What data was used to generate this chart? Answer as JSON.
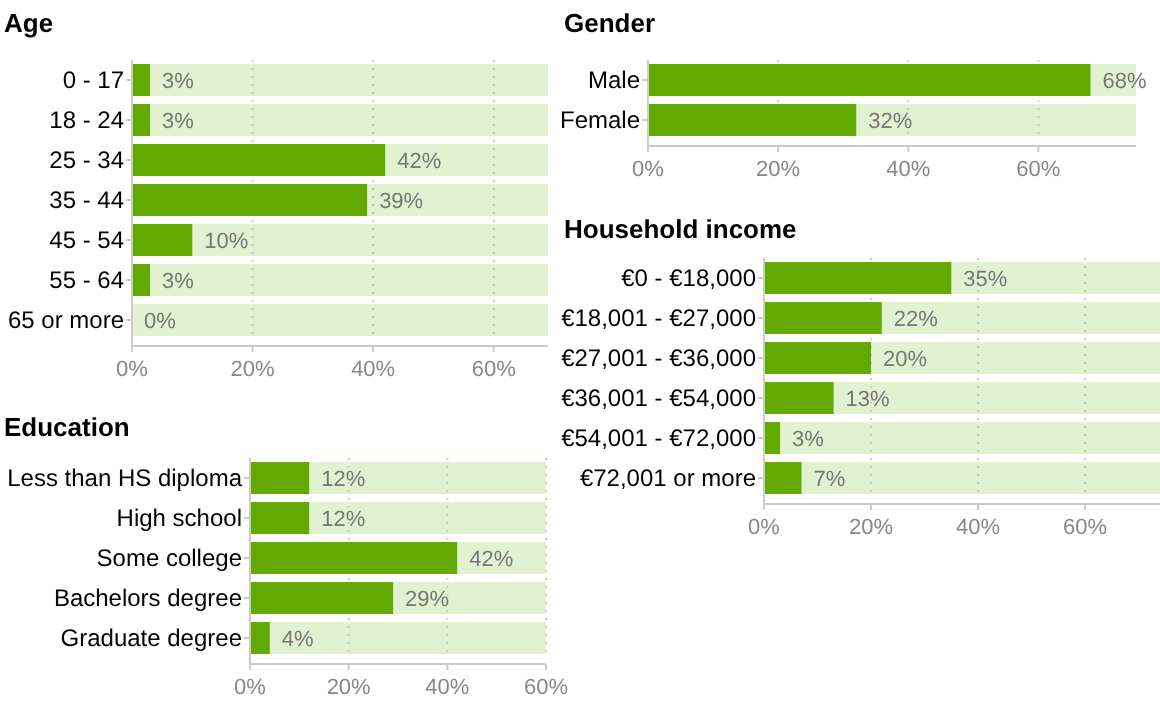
{
  "chart_data": [
    {
      "type": "bar",
      "orientation": "horizontal",
      "title": "Age",
      "categories": [
        "0 - 17",
        "18 - 24",
        "25 - 34",
        "35 - 44",
        "45 - 54",
        "55 - 64",
        "65 or more"
      ],
      "values": [
        3,
        3,
        42,
        39,
        10,
        3,
        0
      ],
      "value_labels": [
        "3%",
        "3%",
        "42%",
        "39%",
        "10%",
        "3%",
        "0%"
      ],
      "color": "#63aa00",
      "xlim": [
        0,
        69
      ],
      "xticks": [
        {
          "value": 0,
          "label": "0%"
        },
        {
          "value": 20,
          "label": "20%"
        },
        {
          "value": 40,
          "label": "40%"
        },
        {
          "value": 60,
          "label": "60%"
        }
      ],
      "grid": "x"
    },
    {
      "type": "bar",
      "orientation": "horizontal",
      "title": "Gender",
      "categories": [
        "Male",
        "Female"
      ],
      "values": [
        68,
        32
      ],
      "value_labels": [
        "68%",
        "32%"
      ],
      "color": "#63aa00",
      "xlim": [
        0,
        75
      ],
      "xticks": [
        {
          "value": 0,
          "label": "0%"
        },
        {
          "value": 20,
          "label": "20%"
        },
        {
          "value": 40,
          "label": "40%"
        },
        {
          "value": 60,
          "label": "60%"
        }
      ],
      "grid": "x"
    },
    {
      "type": "bar",
      "orientation": "horizontal",
      "title": "Household income",
      "categories": [
        "€0 - €18,000",
        "€18,001 - €27,000",
        "€27,001 - €36,000",
        "€36,001 - €54,000",
        "€54,001 - €72,000",
        "€72,001 or more"
      ],
      "values": [
        35,
        22,
        20,
        13,
        3,
        7
      ],
      "value_labels": [
        "35%",
        "22%",
        "20%",
        "13%",
        "3%",
        "7%"
      ],
      "color": "#63aa00",
      "xlim": [
        0,
        74
      ],
      "xticks": [
        {
          "value": 0,
          "label": "0%"
        },
        {
          "value": 20,
          "label": "20%"
        },
        {
          "value": 40,
          "label": "40%"
        },
        {
          "value": 60,
          "label": "60%"
        }
      ],
      "grid": "x"
    },
    {
      "type": "bar",
      "orientation": "horizontal",
      "title": "Education",
      "categories": [
        "Less than HS diploma",
        "High school",
        "Some college",
        "Bachelors degree",
        "Graduate degree"
      ],
      "values": [
        12,
        12,
        42,
        29,
        4
      ],
      "value_labels": [
        "12%",
        "12%",
        "42%",
        "29%",
        "4%"
      ],
      "color": "#63aa00",
      "xlim": [
        0,
        60
      ],
      "xticks": [
        {
          "value": 0,
          "label": "0%"
        },
        {
          "value": 20,
          "label": "20%"
        },
        {
          "value": 40,
          "label": "40%"
        },
        {
          "value": 60,
          "label": "60%"
        }
      ],
      "grid": "x"
    }
  ]
}
